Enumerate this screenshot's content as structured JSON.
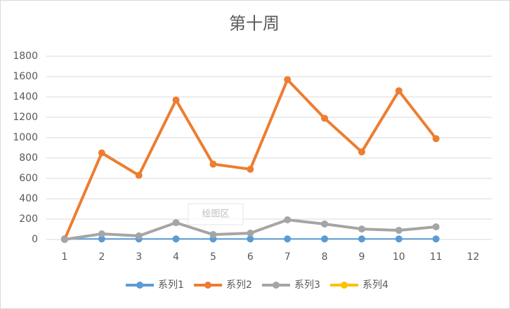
{
  "chart_data": {
    "type": "line",
    "title": "第十周",
    "categories": [
      1,
      2,
      3,
      4,
      5,
      6,
      7,
      8,
      9,
      10,
      11,
      12
    ],
    "series": [
      {
        "name": "系列1",
        "color": "#5b9bd5",
        "values": [
          5,
          5,
          5,
          5,
          5,
          5,
          5,
          5,
          5,
          5,
          5,
          null
        ]
      },
      {
        "name": "系列2",
        "color": "#ed7d31",
        "values": [
          0,
          850,
          630,
          1370,
          740,
          690,
          1570,
          1190,
          860,
          1460,
          990,
          null
        ]
      },
      {
        "name": "系列3",
        "color": "#a5a5a5",
        "values": [
          0,
          55,
          35,
          165,
          48,
          62,
          193,
          152,
          103,
          90,
          124,
          null
        ]
      },
      {
        "name": "系列4",
        "color": "#ffc000",
        "values": [
          null,
          null,
          null,
          null,
          null,
          null,
          null,
          null,
          null,
          null,
          null,
          null
        ]
      }
    ],
    "ylim": [
      0,
      1800
    ],
    "yticks": [
      0,
      200,
      400,
      600,
      800,
      1000,
      1200,
      1400,
      1600,
      1800
    ],
    "grid": true,
    "legend": "bottom",
    "tooltip": "绘图区"
  }
}
